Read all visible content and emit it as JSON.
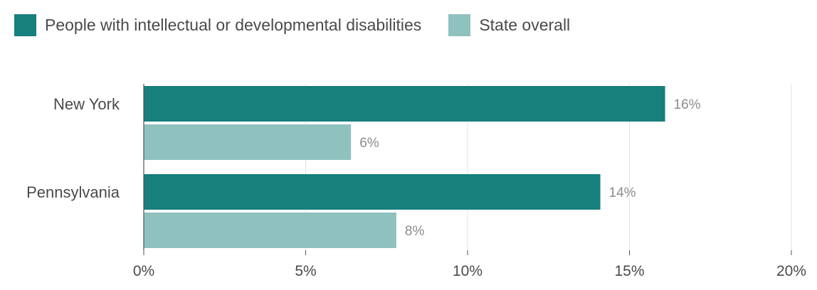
{
  "colors": {
    "series_1": "#177f7c",
    "series_2": "#8fc1bf",
    "grid": "#e2e2e2",
    "axis": "#555555",
    "category_text": "#4a4a4a",
    "data_label_text": "#8c8c8c"
  },
  "legend": {
    "items": [
      {
        "label": "People with intellectual or developmental disabilities"
      },
      {
        "label": "State overall"
      }
    ]
  },
  "chart_data": {
    "type": "bar",
    "orientation": "horizontal",
    "categories": [
      "New York",
      "Pennsylvania"
    ],
    "series": [
      {
        "name": "People with intellectual or developmental disabilities",
        "values": [
          16.1,
          14.1
        ],
        "labels": [
          "16%",
          "14%"
        ]
      },
      {
        "name": "State overall",
        "values": [
          6.4,
          7.8
        ],
        "labels": [
          "6%",
          "8%"
        ]
      }
    ],
    "xlim": [
      0,
      20
    ],
    "xticks": [
      0,
      5,
      10,
      15,
      20
    ],
    "xtick_labels": [
      "0%",
      "5%",
      "10%",
      "15%",
      "20%"
    ],
    "grid": true,
    "legend_position": "top-left"
  }
}
